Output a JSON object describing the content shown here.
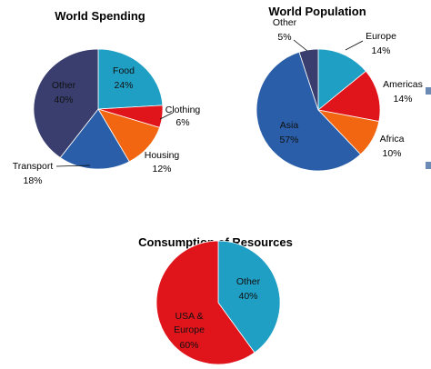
{
  "chart_data": [
    {
      "type": "pie",
      "title": "World Spending",
      "slices": [
        {
          "label": "Food",
          "value": 24,
          "display": "24%",
          "color": "#1f9fc4"
        },
        {
          "label": "Clothing",
          "value": 6,
          "display": "6%",
          "color": "#e0141b"
        },
        {
          "label": "Housing",
          "value": 12,
          "display": "12%",
          "color": "#f26611"
        },
        {
          "label": "Transport",
          "value": 18,
          "display": "18%",
          "color": "#2a5ea8"
        },
        {
          "label": "Other",
          "value": 40,
          "display": "40%",
          "color": "#393e6e"
        }
      ]
    },
    {
      "type": "pie",
      "title": "World Population",
      "slices": [
        {
          "label": "Europe",
          "value": 14,
          "display": "14%",
          "color": "#1f9fc4"
        },
        {
          "label": "Americas",
          "value": 14,
          "display": "14%",
          "color": "#e0141b"
        },
        {
          "label": "Africa",
          "value": 10,
          "display": "10%",
          "color": "#f26611"
        },
        {
          "label": "Asia",
          "value": 57,
          "display": "57%",
          "color": "#2a5ea8"
        },
        {
          "label": "Other",
          "value": 5,
          "display": "5%",
          "color": "#393e6e"
        }
      ]
    },
    {
      "type": "pie",
      "title": "Consumption of Resources",
      "slices": [
        {
          "label": "Other",
          "value": 40,
          "display": "40%",
          "color": "#1f9fc4"
        },
        {
          "label": "USA & Europe",
          "value": 60,
          "display": "60%",
          "color": "#e0141b"
        }
      ]
    }
  ]
}
